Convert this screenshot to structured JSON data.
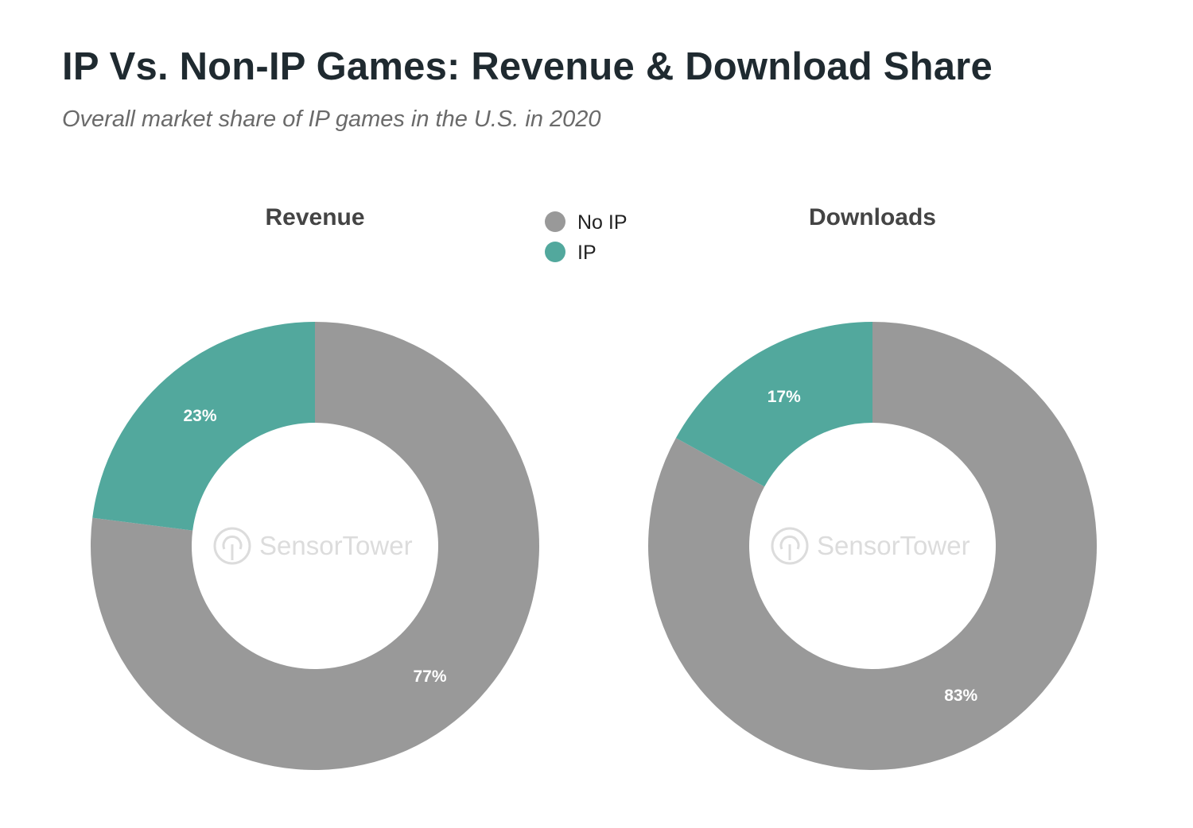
{
  "chart_data": [
    {
      "type": "pie",
      "title": "IP Vs. Non-IP Games: Revenue & Download Share",
      "subtitle": "Overall market share of IP games in the U.S. in 2020",
      "panel_title": "Revenue",
      "categories": [
        "No IP",
        "IP"
      ],
      "values": [
        77,
        23
      ],
      "labels": [
        "77%",
        "23%"
      ],
      "colors": [
        "#999999",
        "#52a89d"
      ],
      "legend": {
        "entries": [
          "No IP",
          "IP"
        ],
        "placement": "top-center"
      },
      "watermark": "SensorTower"
    },
    {
      "type": "pie",
      "panel_title": "Downloads",
      "categories": [
        "No IP",
        "IP"
      ],
      "values": [
        83,
        17
      ],
      "labels": [
        "83%",
        "17%"
      ],
      "colors": [
        "#999999",
        "#52a89d"
      ],
      "watermark": "SensorTower"
    }
  ]
}
